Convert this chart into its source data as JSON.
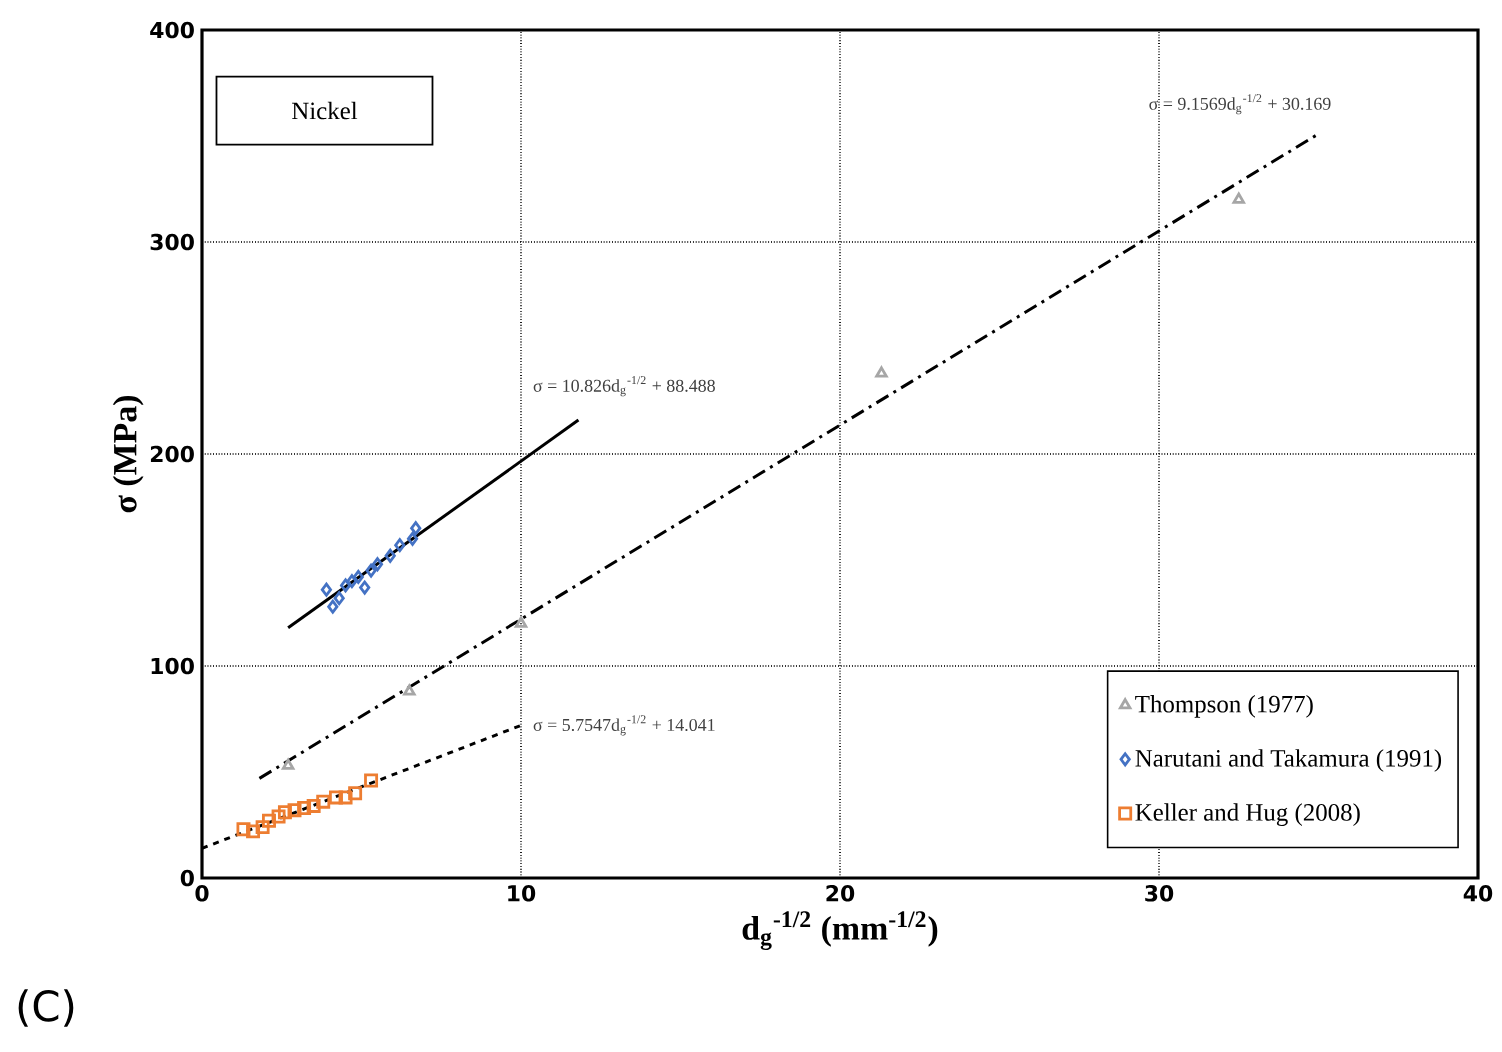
{
  "chart_data": {
    "type": "scatter",
    "xlabel": "d$_{g}$$^{-1/2}$ (mm$^{-1/2}$)",
    "ylabel": "σ (MPa)",
    "xlim": [
      0,
      40
    ],
    "ylim": [
      0,
      400
    ],
    "xticks": [
      0,
      10,
      20,
      30,
      40
    ],
    "yticks": [
      0,
      100,
      200,
      300,
      400
    ],
    "grid": true,
    "legend": "bottom right",
    "series": [
      {
        "name": "Thompson (1977)",
        "color": "#a6a6a6",
        "marker": "triangle",
        "x": [
          2.7,
          6.5,
          10,
          21.3,
          32.5
        ],
        "values": [
          53,
          88,
          120,
          238,
          320
        ]
      },
      {
        "name": "Narutani and Takamura (1991)",
        "color": "#4472c4",
        "marker": "diamond",
        "x": [
          3.9,
          4.1,
          4.3,
          4.5,
          4.7,
          4.9,
          5.1,
          5.3,
          5.5,
          5.9,
          6.2,
          6.6,
          6.7
        ],
        "values": [
          136,
          128,
          132,
          138,
          140,
          142,
          137,
          145,
          148,
          152,
          157,
          160,
          165
        ]
      },
      {
        "name": "Keller and Hug (2008)",
        "color": "#ed7d31",
        "marker": "square",
        "x": [
          1.3,
          1.6,
          1.9,
          2.1,
          2.4,
          2.6,
          2.9,
          3.2,
          3.5,
          3.8,
          4.2,
          4.5,
          4.8,
          5.3
        ],
        "values": [
          23,
          22,
          24,
          27,
          29,
          31,
          32,
          33,
          34,
          36,
          38,
          38,
          40,
          46
        ]
      },
      {
        "type": "line",
        "color": "#000000",
        "line_style": "solid",
        "x": [
          2.7,
          11.8
        ],
        "values": [
          118,
          216
        ]
      },
      {
        "type": "line",
        "color": "#000000",
        "line_style": "dashdot",
        "x": [
          1.8,
          35
        ],
        "values": [
          47,
          351
        ]
      },
      {
        "type": "line",
        "color": "#000000",
        "line_style": "dashed",
        "x": [
          0,
          10
        ],
        "values": [
          14,
          72
        ]
      }
    ],
    "annotations": [
      "σ = 10.826d$_{g}$$^{-1/2}$ + 88.488",
      "σ = 9.1569d$_{g}$$^{-1/2}$ + 30.169",
      {
        "text": "σ = 5.7547d$_{g}$$^{-1/2}$ + 14.041",
        "x": 10.3,
        "y": 72
      },
      "Nickel",
      "(C)"
    ]
  }
}
